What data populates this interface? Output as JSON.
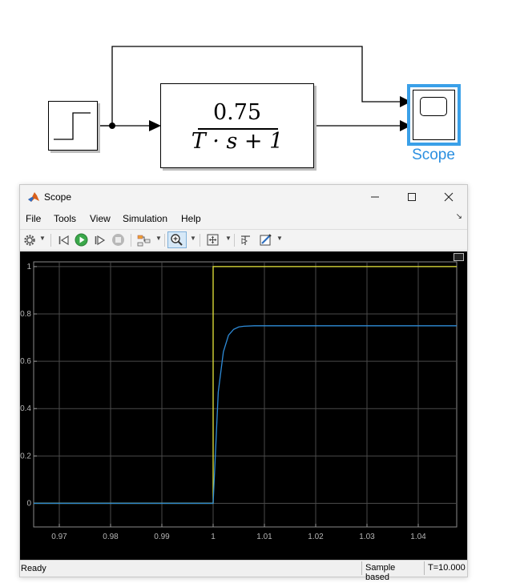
{
  "diagram": {
    "tf_numerator": "0.75",
    "tf_denominator": "T · s + 1",
    "scope_label": "Scope",
    "scope_color": "#2b8fe0"
  },
  "window": {
    "title": "Scope",
    "controls": {
      "minimize": "—",
      "maximize": "☐",
      "close": "✕"
    }
  },
  "menu": {
    "items": [
      "File",
      "Tools",
      "View",
      "Simulation",
      "Help"
    ]
  },
  "toolbar": {
    "icons": [
      "gear-icon",
      "step-back-icon",
      "run-icon",
      "step-forward-icon",
      "stop-icon",
      "highlight-icon",
      "zoom-icon",
      "fit-icon",
      "cursor-icon",
      "style-icon"
    ]
  },
  "status": {
    "text": "Ready",
    "mode": "Sample based",
    "time": "T=10.000"
  },
  "chart_data": {
    "type": "line",
    "title": "",
    "xlabel": "",
    "ylabel": "",
    "xlim": [
      0.965,
      1.0475
    ],
    "ylim": [
      -0.1,
      1.02
    ],
    "x_ticks": [
      "0.97",
      "0.98",
      "0.99",
      "1",
      "1.01",
      "1.02",
      "1.03",
      "1.04"
    ],
    "y_ticks": [
      "0",
      "0.2",
      "0.4",
      "0.6",
      "0.8",
      "1"
    ],
    "grid": true,
    "background": "#000000",
    "series": [
      {
        "color": "#e8e83a",
        "x": [
          0.965,
          1.0,
          1.0,
          1.0475
        ],
        "y": [
          0,
          0,
          1,
          1
        ]
      },
      {
        "color": "#2e8bd8",
        "x": [
          0.965,
          1.0,
          1.001,
          1.002,
          1.003,
          1.004,
          1.005,
          1.006,
          1.008,
          1.01,
          1.0475
        ],
        "y": [
          0,
          0,
          0.47,
          0.64,
          0.71,
          0.735,
          0.745,
          0.748,
          0.75,
          0.75,
          0.75
        ]
      }
    ]
  }
}
